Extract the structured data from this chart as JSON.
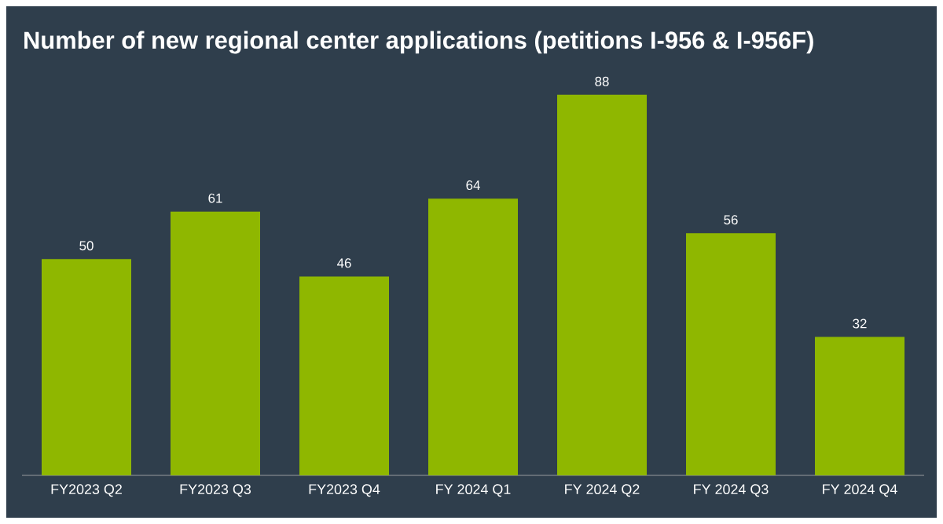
{
  "chart_data": {
    "type": "bar",
    "title": "Number of new regional center applications (petitions I-956 & I-956F)",
    "categories": [
      "FY2023 Q2",
      "FY2023 Q3",
      "FY2023 Q4",
      "FY 2024 Q1",
      "FY 2024 Q2",
      "FY 2024 Q3",
      "FY 2024 Q4"
    ],
    "values": [
      50,
      61,
      46,
      64,
      88,
      56,
      32
    ],
    "color": "#8fb700",
    "data_labels": true
  }
}
